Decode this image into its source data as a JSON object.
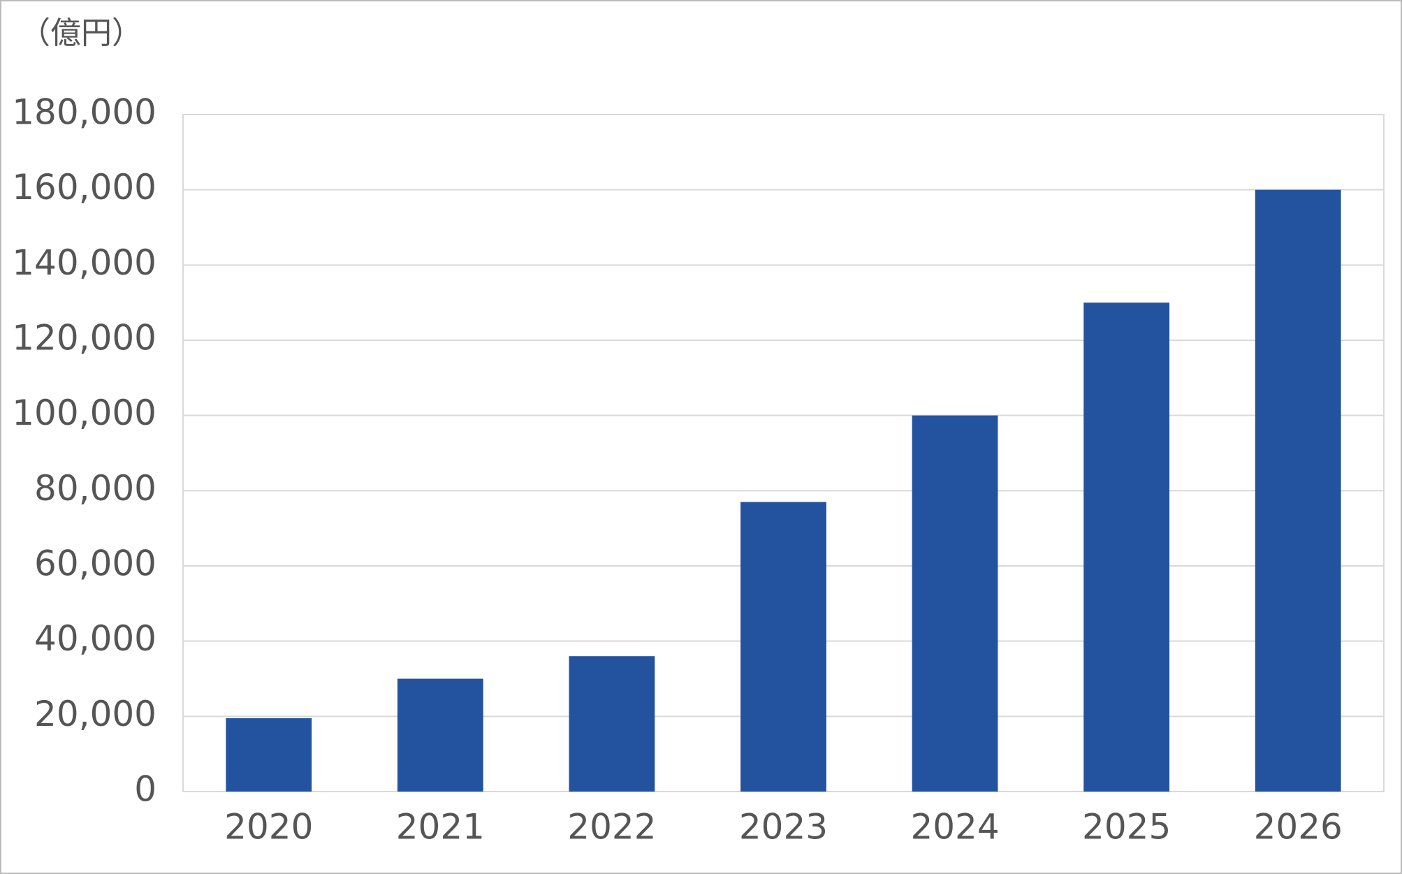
{
  "chart_data": {
    "type": "bar",
    "y_axis_label": "（億円）",
    "categories": [
      "2020",
      "2021",
      "2022",
      "2023",
      "2024",
      "2025",
      "2026"
    ],
    "values": [
      19500,
      30000,
      36000,
      77000,
      100000,
      130000,
      160000
    ],
    "color": "#23539e",
    "ylim": [
      0,
      180000
    ],
    "yticks": [
      0,
      {
        "value": 20000,
        "label": "20,000"
      },
      {
        "value": 40000,
        "label": "40,000"
      },
      {
        "value": 60000,
        "label": "60,000"
      },
      {
        "value": 80000,
        "label": "80,000"
      },
      {
        "value": 100000,
        "label": "100,000"
      },
      {
        "value": 120000,
        "label": "120,000"
      },
      {
        "value": 140000,
        "label": "140,000"
      },
      {
        "value": 160000,
        "label": "160,000"
      },
      {
        "value": 180000,
        "label": "180,000"
      }
    ],
    "grid": true
  }
}
